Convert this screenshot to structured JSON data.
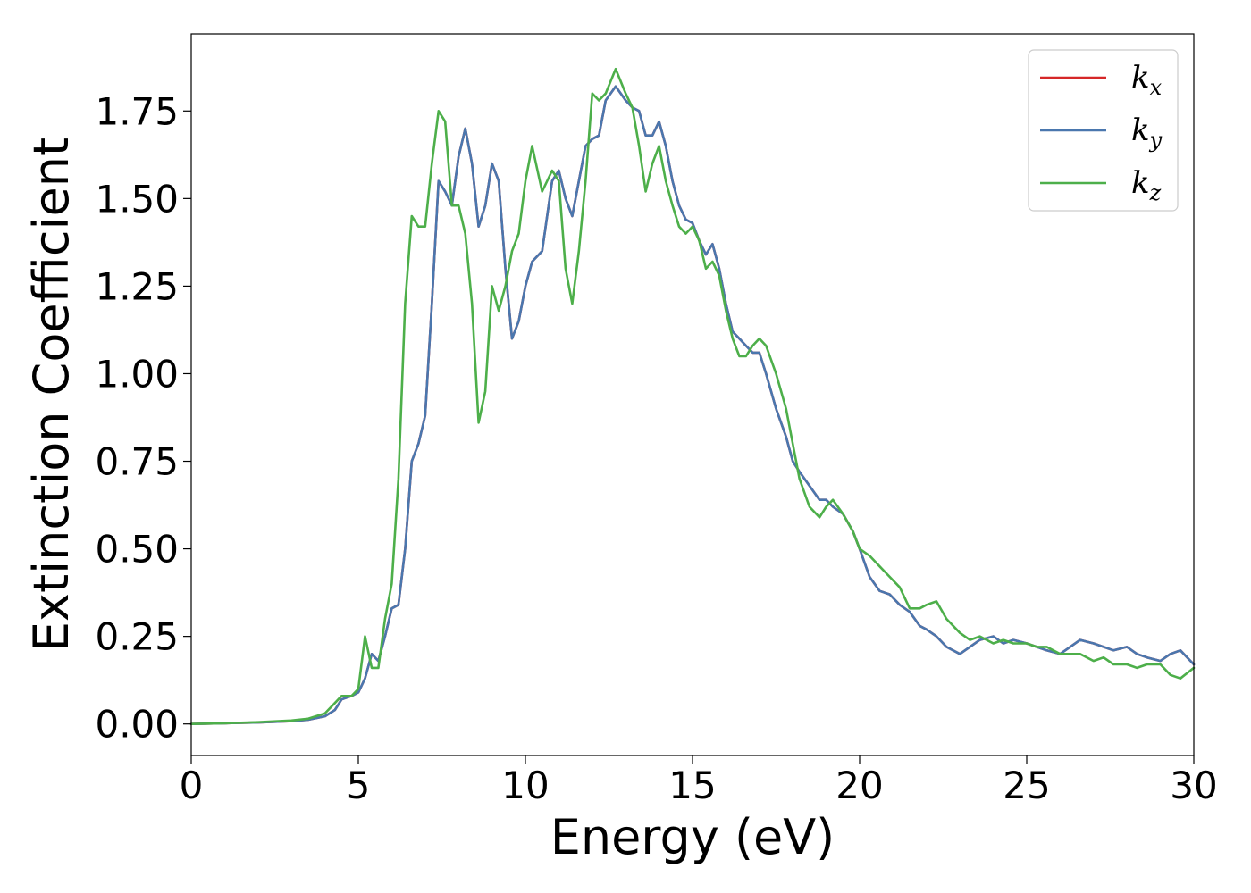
{
  "chart_data": {
    "type": "line",
    "xlabel": "Energy (eV)",
    "ylabel": "Extinction Coefficient",
    "xlim": [
      0,
      30
    ],
    "ylim": [
      -0.09,
      1.97
    ],
    "xticks": [
      0,
      5,
      10,
      15,
      20,
      25,
      30
    ],
    "xtick_labels": [
      "0",
      "5",
      "10",
      "15",
      "20",
      "25",
      "30"
    ],
    "yticks": [
      0.0,
      0.25,
      0.5,
      0.75,
      1.0,
      1.25,
      1.5,
      1.75
    ],
    "ytick_labels": [
      "0.00",
      "0.25",
      "0.50",
      "0.75",
      "1.00",
      "1.25",
      "1.50",
      "1.75"
    ],
    "grid": false,
    "legend_position": "top-right",
    "series": [
      {
        "name": "k_x",
        "legend_base": "k",
        "legend_sub": "x",
        "color": "#d62728",
        "x": [
          0,
          1,
          2,
          3,
          3.5,
          4,
          4.3,
          4.5,
          4.8,
          5,
          5.2,
          5.4,
          5.6,
          5.8,
          6,
          6.2,
          6.4,
          6.6,
          6.8,
          7,
          7.2,
          7.4,
          7.6,
          7.8,
          8,
          8.2,
          8.4,
          8.6,
          8.8,
          9,
          9.2,
          9.4,
          9.6,
          9.8,
          10,
          10.2,
          10.5,
          10.8,
          11,
          11.2,
          11.4,
          11.6,
          11.8,
          12,
          12.2,
          12.4,
          12.7,
          13,
          13.2,
          13.4,
          13.6,
          13.8,
          14,
          14.2,
          14.4,
          14.6,
          14.8,
          15,
          15.2,
          15.4,
          15.6,
          15.8,
          16,
          16.2,
          16.4,
          16.6,
          16.8,
          17,
          17.2,
          17.5,
          17.8,
          18,
          18.2,
          18.5,
          18.8,
          19,
          19.2,
          19.5,
          19.8,
          20,
          20.3,
          20.6,
          20.9,
          21.2,
          21.5,
          21.8,
          22,
          22.3,
          22.6,
          23,
          23.3,
          23.6,
          24,
          24.3,
          24.6,
          25,
          25.3,
          25.6,
          26,
          26.3,
          26.6,
          27,
          27.3,
          27.6,
          28,
          28.3,
          28.6,
          29,
          29.3,
          29.6,
          30
        ],
        "values": [
          0,
          0.002,
          0.004,
          0.008,
          0.012,
          0.022,
          0.04,
          0.07,
          0.08,
          0.09,
          0.13,
          0.2,
          0.18,
          0.25,
          0.33,
          0.34,
          0.5,
          0.75,
          0.8,
          0.88,
          1.2,
          1.55,
          1.52,
          1.48,
          1.62,
          1.7,
          1.6,
          1.42,
          1.48,
          1.6,
          1.55,
          1.3,
          1.1,
          1.15,
          1.25,
          1.32,
          1.35,
          1.55,
          1.58,
          1.5,
          1.45,
          1.55,
          1.65,
          1.67,
          1.68,
          1.78,
          1.82,
          1.78,
          1.76,
          1.75,
          1.68,
          1.68,
          1.72,
          1.65,
          1.55,
          1.48,
          1.44,
          1.43,
          1.38,
          1.34,
          1.37,
          1.3,
          1.2,
          1.12,
          1.1,
          1.08,
          1.06,
          1.06,
          1.0,
          0.9,
          0.82,
          0.75,
          0.72,
          0.68,
          0.64,
          0.64,
          0.62,
          0.6,
          0.55,
          0.5,
          0.42,
          0.38,
          0.37,
          0.34,
          0.32,
          0.28,
          0.27,
          0.25,
          0.22,
          0.2,
          0.22,
          0.24,
          0.25,
          0.23,
          0.24,
          0.23,
          0.22,
          0.21,
          0.2,
          0.22,
          0.24,
          0.23,
          0.22,
          0.21,
          0.22,
          0.2,
          0.19,
          0.18,
          0.2,
          0.21,
          0.17
        ]
      },
      {
        "name": "k_y",
        "legend_base": "k",
        "legend_sub": "y",
        "color": "#4a77ae",
        "x": [
          0,
          1,
          2,
          3,
          3.5,
          4,
          4.3,
          4.5,
          4.8,
          5,
          5.2,
          5.4,
          5.6,
          5.8,
          6,
          6.2,
          6.4,
          6.6,
          6.8,
          7,
          7.2,
          7.4,
          7.6,
          7.8,
          8,
          8.2,
          8.4,
          8.6,
          8.8,
          9,
          9.2,
          9.4,
          9.6,
          9.8,
          10,
          10.2,
          10.5,
          10.8,
          11,
          11.2,
          11.4,
          11.6,
          11.8,
          12,
          12.2,
          12.4,
          12.7,
          13,
          13.2,
          13.4,
          13.6,
          13.8,
          14,
          14.2,
          14.4,
          14.6,
          14.8,
          15,
          15.2,
          15.4,
          15.6,
          15.8,
          16,
          16.2,
          16.4,
          16.6,
          16.8,
          17,
          17.2,
          17.5,
          17.8,
          18,
          18.2,
          18.5,
          18.8,
          19,
          19.2,
          19.5,
          19.8,
          20,
          20.3,
          20.6,
          20.9,
          21.2,
          21.5,
          21.8,
          22,
          22.3,
          22.6,
          23,
          23.3,
          23.6,
          24,
          24.3,
          24.6,
          25,
          25.3,
          25.6,
          26,
          26.3,
          26.6,
          27,
          27.3,
          27.6,
          28,
          28.3,
          28.6,
          29,
          29.3,
          29.6,
          30
        ],
        "values": [
          0,
          0.002,
          0.004,
          0.008,
          0.012,
          0.022,
          0.04,
          0.07,
          0.08,
          0.09,
          0.13,
          0.2,
          0.18,
          0.25,
          0.33,
          0.34,
          0.5,
          0.75,
          0.8,
          0.88,
          1.2,
          1.55,
          1.52,
          1.48,
          1.62,
          1.7,
          1.6,
          1.42,
          1.48,
          1.6,
          1.55,
          1.3,
          1.1,
          1.15,
          1.25,
          1.32,
          1.35,
          1.55,
          1.58,
          1.5,
          1.45,
          1.55,
          1.65,
          1.67,
          1.68,
          1.78,
          1.82,
          1.78,
          1.76,
          1.75,
          1.68,
          1.68,
          1.72,
          1.65,
          1.55,
          1.48,
          1.44,
          1.43,
          1.38,
          1.34,
          1.37,
          1.3,
          1.2,
          1.12,
          1.1,
          1.08,
          1.06,
          1.06,
          1.0,
          0.9,
          0.82,
          0.75,
          0.72,
          0.68,
          0.64,
          0.64,
          0.62,
          0.6,
          0.55,
          0.5,
          0.42,
          0.38,
          0.37,
          0.34,
          0.32,
          0.28,
          0.27,
          0.25,
          0.22,
          0.2,
          0.22,
          0.24,
          0.25,
          0.23,
          0.24,
          0.23,
          0.22,
          0.21,
          0.2,
          0.22,
          0.24,
          0.23,
          0.22,
          0.21,
          0.22,
          0.2,
          0.19,
          0.18,
          0.2,
          0.21,
          0.17
        ]
      },
      {
        "name": "k_z",
        "legend_base": "k",
        "legend_sub": "z",
        "color": "#4daf4a",
        "x": [
          0,
          1,
          2,
          3,
          3.5,
          4,
          4.3,
          4.5,
          4.8,
          5,
          5.2,
          5.4,
          5.6,
          5.8,
          6,
          6.2,
          6.4,
          6.6,
          6.8,
          7,
          7.2,
          7.4,
          7.6,
          7.8,
          8,
          8.2,
          8.4,
          8.6,
          8.8,
          9,
          9.2,
          9.4,
          9.6,
          9.8,
          10,
          10.2,
          10.5,
          10.8,
          11,
          11.2,
          11.4,
          11.6,
          11.8,
          12,
          12.2,
          12.4,
          12.7,
          13,
          13.2,
          13.4,
          13.6,
          13.8,
          14,
          14.2,
          14.4,
          14.6,
          14.8,
          15,
          15.2,
          15.4,
          15.6,
          15.8,
          16,
          16.2,
          16.4,
          16.6,
          16.8,
          17,
          17.2,
          17.5,
          17.8,
          18,
          18.2,
          18.5,
          18.8,
          19,
          19.2,
          19.5,
          19.8,
          20,
          20.3,
          20.6,
          20.9,
          21.2,
          21.5,
          21.8,
          22,
          22.3,
          22.6,
          23,
          23.3,
          23.6,
          24,
          24.3,
          24.6,
          25,
          25.3,
          25.6,
          26,
          26.3,
          26.6,
          27,
          27.3,
          27.6,
          28,
          28.3,
          28.6,
          29,
          29.3,
          29.6,
          30
        ],
        "values": [
          0,
          0.002,
          0.005,
          0.01,
          0.015,
          0.03,
          0.06,
          0.08,
          0.08,
          0.1,
          0.25,
          0.16,
          0.16,
          0.3,
          0.4,
          0.7,
          1.2,
          1.45,
          1.42,
          1.42,
          1.6,
          1.75,
          1.72,
          1.48,
          1.48,
          1.4,
          1.2,
          0.86,
          0.95,
          1.25,
          1.18,
          1.25,
          1.35,
          1.4,
          1.55,
          1.65,
          1.52,
          1.58,
          1.55,
          1.3,
          1.2,
          1.35,
          1.55,
          1.8,
          1.78,
          1.8,
          1.87,
          1.8,
          1.76,
          1.65,
          1.52,
          1.6,
          1.65,
          1.55,
          1.48,
          1.42,
          1.4,
          1.42,
          1.38,
          1.3,
          1.32,
          1.28,
          1.18,
          1.1,
          1.05,
          1.05,
          1.08,
          1.1,
          1.08,
          1.0,
          0.9,
          0.8,
          0.7,
          0.62,
          0.59,
          0.62,
          0.64,
          0.6,
          0.55,
          0.5,
          0.48,
          0.45,
          0.42,
          0.39,
          0.33,
          0.33,
          0.34,
          0.35,
          0.3,
          0.26,
          0.24,
          0.25,
          0.23,
          0.24,
          0.23,
          0.23,
          0.22,
          0.22,
          0.2,
          0.2,
          0.2,
          0.18,
          0.19,
          0.17,
          0.17,
          0.16,
          0.17,
          0.17,
          0.14,
          0.13,
          0.16
        ]
      }
    ]
  }
}
